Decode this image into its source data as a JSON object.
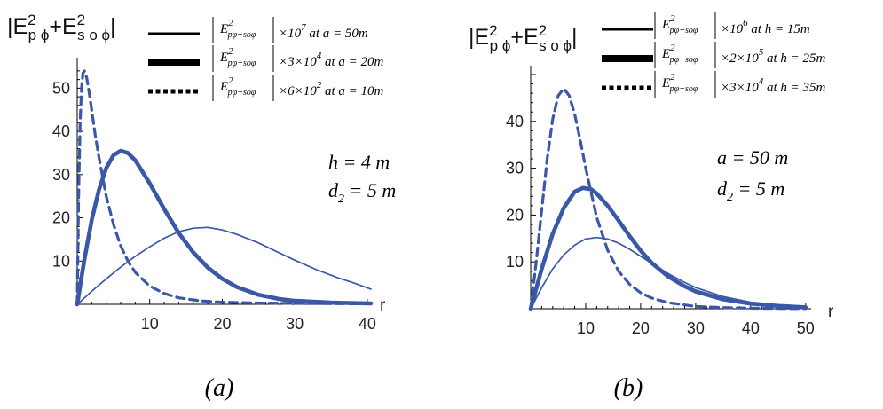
{
  "chart_data": [
    {
      "panel": "a",
      "type": "line",
      "caption": "(a)",
      "ylabel": {
        "E": "|E",
        "p": "p",
        "phi1": "ϕ",
        "plus": "+E",
        "s": "s o ϕ",
        "close": "|"
      },
      "xlabel": "r",
      "xlim": [
        0,
        40.5
      ],
      "ylim": [
        0,
        55
      ],
      "xticks": [
        10,
        20,
        30,
        40
      ],
      "yticks": [
        10,
        20,
        30,
        40,
        50
      ],
      "annotations": [
        {
          "main": "h = 4 m"
        },
        {
          "main": "d",
          "sub": "2",
          "rest": " = 5 m"
        }
      ],
      "series": [
        {
          "style": "thin",
          "legend": {
            "E": "E",
            "sup": "2",
            "sub": "pφ+soφ",
            "factor": "×10",
            "exp": "7",
            "cond": "at  a = 50m"
          },
          "x": [
            0,
            1,
            2,
            4,
            6,
            8,
            10,
            12,
            14,
            15,
            16,
            18,
            20,
            22,
            25,
            28,
            30,
            33,
            36,
            38,
            40.5
          ],
          "y": [
            0,
            1.5,
            3.0,
            5.9,
            8.6,
            11.1,
            13.3,
            15.3,
            16.8,
            17.2,
            17.6,
            17.8,
            17.2,
            16.2,
            14.2,
            11.8,
            10.2,
            8.0,
            6.1,
            5.0,
            3.5
          ]
        },
        {
          "style": "thick",
          "legend": {
            "E": "E",
            "sup": "2",
            "sub": "pφ+soφ",
            "factor": "×3×10",
            "exp": "4",
            "cond": "at  a = 20m"
          },
          "x": [
            0,
            1,
            2,
            3,
            4,
            5,
            6,
            7,
            8,
            10,
            12,
            14,
            16,
            18,
            20,
            22,
            25,
            28,
            30,
            35,
            40.5
          ],
          "y": [
            0,
            10.5,
            19.5,
            26.5,
            31.5,
            34.5,
            35.5,
            35.0,
            33.3,
            28.0,
            22.0,
            16.5,
            12.0,
            8.5,
            5.9,
            4.0,
            2.2,
            1.2,
            0.8,
            0.4,
            0.2
          ]
        },
        {
          "style": "dashed",
          "legend": {
            "E": "E",
            "sup": "2",
            "sub": "pφ+soφ",
            "factor": "×6×10",
            "exp": "2",
            "cond": "at  a = 10m"
          },
          "x": [
            0,
            0.2,
            0.4,
            0.6,
            0.8,
            1.0,
            1.3,
            1.6,
            2.0,
            2.5,
            3.0,
            4.0,
            5.0,
            6.0,
            7.0,
            8.0,
            10,
            12,
            14,
            17,
            20,
            25,
            30,
            40.5
          ],
          "y": [
            0,
            25,
            42,
            50,
            53.5,
            54.0,
            52.5,
            49.5,
            45.0,
            39.0,
            34.0,
            25.0,
            18.5,
            13.5,
            10.0,
            7.4,
            4.2,
            2.5,
            1.5,
            0.8,
            0.5,
            0.3,
            0.2,
            0.1
          ]
        }
      ]
    },
    {
      "panel": "b",
      "type": "line",
      "caption": "(b)",
      "ylabel": {
        "E": "|E",
        "p": "p",
        "phi1": "ϕ",
        "plus": "+E",
        "s": "s o ϕ",
        "close": "|"
      },
      "xlabel": "r",
      "xlim": [
        0,
        51
      ],
      "ylim": [
        0,
        50
      ],
      "xticks": [
        10,
        20,
        30,
        40,
        50
      ],
      "yticks": [
        10,
        20,
        30,
        40
      ],
      "annotations": [
        {
          "main": "a = 50 m"
        },
        {
          "main": "d",
          "sub": "2",
          "rest": " = 5 m"
        }
      ],
      "series": [
        {
          "style": "thin",
          "legend": {
            "E": "E",
            "sup": "2",
            "sub": "pφ+soφ",
            "factor": "×10",
            "exp": "6",
            "cond": "at  h = 15m"
          },
          "x": [
            0,
            2,
            4,
            6,
            8,
            10,
            12,
            14,
            16,
            18,
            20,
            22,
            25,
            28,
            30,
            35,
            40,
            45,
            50
          ],
          "y": [
            0,
            4.5,
            8.5,
            11.5,
            13.6,
            14.9,
            15.2,
            14.9,
            14.0,
            12.7,
            11.2,
            9.7,
            7.5,
            5.6,
            4.5,
            2.6,
            1.4,
            0.8,
            0.4
          ]
        },
        {
          "style": "thick",
          "legend": {
            "E": "E",
            "sup": "2",
            "sub": "pφ+soφ",
            "factor": "×2×10",
            "exp": "5",
            "cond": "at h = 25m"
          },
          "x": [
            0,
            2,
            4,
            6,
            8,
            9.5,
            11,
            12,
            14,
            16,
            18,
            20,
            22,
            25,
            28,
            30,
            35,
            40,
            45,
            50
          ],
          "y": [
            0,
            8.5,
            16.0,
            21.5,
            25.0,
            25.8,
            25.5,
            24.6,
            22.0,
            18.8,
            15.5,
            12.4,
            9.8,
            6.9,
            4.8,
            3.7,
            2.0,
            1.1,
            0.6,
            0.3
          ]
        },
        {
          "style": "dashed",
          "legend": {
            "E": "E",
            "sup": "2",
            "sub": "pφ+soφ",
            "factor": "×3×10",
            "exp": "4",
            "cond": "at h = 35m"
          },
          "x": [
            0,
            1,
            2,
            3,
            4,
            5,
            6,
            7,
            8,
            9,
            10,
            12,
            14,
            16,
            18,
            20,
            22,
            25,
            30,
            35,
            40,
            45,
            50
          ],
          "y": [
            0,
            10.0,
            21.0,
            32.0,
            40.5,
            45.5,
            47.0,
            45.5,
            41.5,
            36.0,
            30.0,
            19.5,
            12.5,
            8.0,
            5.2,
            3.4,
            2.3,
            1.3,
            0.5,
            0.25,
            0.12,
            0.06,
            0.03
          ]
        }
      ]
    }
  ]
}
